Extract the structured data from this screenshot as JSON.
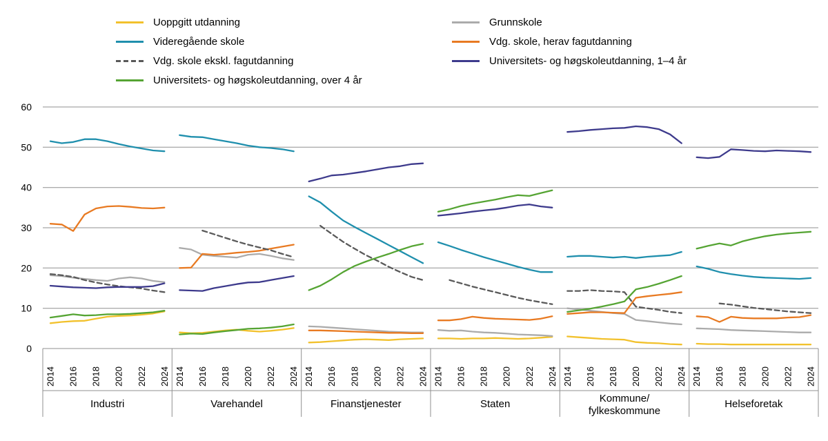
{
  "chart_data": {
    "type": "line",
    "years": [
      2014,
      2015,
      2016,
      2017,
      2018,
      2019,
      2020,
      2021,
      2022,
      2023,
      2024
    ],
    "x_tick_years": [
      2014,
      2016,
      2018,
      2020,
      2022,
      2024
    ],
    "ylim": [
      0,
      60
    ],
    "yticks": [
      0,
      10,
      20,
      30,
      40,
      50,
      60
    ],
    "style": {
      "background": "#FFFFFF",
      "grid_color": "#8F8F8F",
      "text_color": "#000000"
    },
    "series_meta": [
      {
        "id": "uoppgitt",
        "label": "Uoppgitt utdanning",
        "color": "#F2C12C",
        "dashed": false,
        "legend_column": "left"
      },
      {
        "id": "grunnskole",
        "label": "Grunnskole",
        "color": "#ABABAB",
        "dashed": false,
        "legend_column": "right"
      },
      {
        "id": "videregaende",
        "label": "Videregående skole",
        "color": "#1F8FAD",
        "dashed": false,
        "legend_column": "left"
      },
      {
        "id": "fagutdanning",
        "label": "Vdg. skole, herav fagutdanning",
        "color": "#E87A22",
        "dashed": false,
        "legend_column": "right"
      },
      {
        "id": "ekskl_fag",
        "label": "Vdg. skole ekskl. fagutdanning",
        "color": "#595959",
        "dashed": true,
        "legend_column": "left"
      },
      {
        "id": "uni_1_4",
        "label": "Universitets- og høgskoleutdanning, 1–4 år",
        "color": "#3D3A8C",
        "dashed": false,
        "legend_column": "right"
      },
      {
        "id": "uni_over_4",
        "label": "Universitets- og høgskoleutdanning, over 4 år",
        "color": "#55A433",
        "dashed": false,
        "legend_column": "left"
      }
    ],
    "panels": [
      {
        "id": "industri",
        "name": "Industri",
        "label_lines": [
          "Industri"
        ],
        "series": {
          "uoppgitt": [
            6.3,
            6.6,
            6.8,
            6.9,
            7.4,
            7.9,
            8.1,
            8.2,
            8.4,
            8.7,
            9.2
          ],
          "grunnskole": [
            18.2,
            18.0,
            17.6,
            17.3,
            17.0,
            16.8,
            17.4,
            17.7,
            17.4,
            16.8,
            16.5
          ],
          "videregaende": [
            51.5,
            51.0,
            51.3,
            52.0,
            52.0,
            51.5,
            50.8,
            50.2,
            49.7,
            49.2,
            49.0
          ],
          "fagutdanning": [
            31.0,
            30.8,
            29.2,
            33.3,
            34.8,
            35.3,
            35.4,
            35.2,
            34.9,
            34.8,
            35.0
          ],
          "ekskl_fag": [
            18.5,
            18.2,
            17.8,
            17.0,
            16.4,
            15.9,
            15.5,
            15.2,
            14.9,
            14.4,
            14.0
          ],
          "uni_1_4": [
            15.6,
            15.4,
            15.2,
            15.1,
            15.0,
            15.2,
            15.3,
            15.3,
            15.3,
            15.5,
            16.2
          ],
          "uni_over_4": [
            7.7,
            8.1,
            8.5,
            8.2,
            8.3,
            8.5,
            8.5,
            8.6,
            8.8,
            9.0,
            9.4
          ]
        }
      },
      {
        "id": "varehandel",
        "name": "Varehandel",
        "label_lines": [
          "Varehandel"
        ],
        "series": {
          "uoppgitt": [
            4.0,
            3.8,
            3.9,
            4.2,
            4.5,
            4.7,
            4.4,
            4.2,
            4.4,
            4.7,
            5.1
          ],
          "grunnskole": [
            25.0,
            24.6,
            23.3,
            23.0,
            22.8,
            22.6,
            23.3,
            23.5,
            23.0,
            22.4,
            22.0
          ],
          "videregaende": [
            53.0,
            52.6,
            52.5,
            52.0,
            51.5,
            51.0,
            50.4,
            50.0,
            49.8,
            49.5,
            49.0
          ],
          "fagutdanning": [
            20.0,
            20.1,
            23.5,
            23.3,
            23.5,
            23.8,
            24.0,
            24.3,
            24.8,
            25.3,
            25.8
          ],
          "ekskl_fag": [
            null,
            null,
            29.3,
            28.4,
            27.5,
            26.6,
            25.8,
            25.1,
            24.4,
            23.5,
            22.7
          ],
          "uni_1_4": [
            14.5,
            14.4,
            14.3,
            15.0,
            15.5,
            16.0,
            16.4,
            16.5,
            17.0,
            17.5,
            18.0
          ],
          "uni_over_4": [
            3.5,
            3.7,
            3.6,
            4.0,
            4.3,
            4.6,
            4.9,
            5.0,
            5.2,
            5.5,
            6.0
          ]
        }
      },
      {
        "id": "finanstjenester",
        "name": "Finanstjenester",
        "label_lines": [
          "Finanstjenester"
        ],
        "series": {
          "uoppgitt": [
            1.5,
            1.6,
            1.8,
            2.0,
            2.2,
            2.3,
            2.2,
            2.1,
            2.3,
            2.4,
            2.5
          ],
          "grunnskole": [
            5.5,
            5.4,
            5.2,
            5.0,
            4.8,
            4.6,
            4.4,
            4.2,
            4.1,
            4.0,
            4.0
          ],
          "videregaende": [
            37.8,
            36.3,
            34.0,
            31.8,
            30.2,
            28.7,
            27.2,
            25.7,
            24.2,
            22.7,
            21.2
          ],
          "fagutdanning": [
            4.5,
            4.5,
            4.4,
            4.3,
            4.2,
            4.1,
            4.0,
            3.9,
            3.9,
            3.8,
            3.8
          ],
          "ekskl_fag": [
            null,
            30.5,
            28.5,
            26.5,
            24.8,
            23.2,
            21.8,
            20.3,
            19.0,
            17.8,
            17.0
          ],
          "uni_1_4": [
            41.5,
            42.2,
            43.0,
            43.2,
            43.6,
            44.0,
            44.5,
            45.0,
            45.3,
            45.8,
            46.0
          ],
          "uni_over_4": [
            14.5,
            15.6,
            17.2,
            19.0,
            20.5,
            21.6,
            22.6,
            23.5,
            24.5,
            25.4,
            26.0
          ]
        }
      },
      {
        "id": "staten",
        "name": "Staten",
        "label_lines": [
          "Staten"
        ],
        "series": {
          "uoppgitt": [
            2.5,
            2.5,
            2.4,
            2.5,
            2.5,
            2.6,
            2.5,
            2.4,
            2.5,
            2.7,
            2.9
          ],
          "grunnskole": [
            4.6,
            4.4,
            4.5,
            4.2,
            4.0,
            3.9,
            3.7,
            3.5,
            3.4,
            3.3,
            3.1
          ],
          "videregaende": [
            26.4,
            25.5,
            24.5,
            23.6,
            22.7,
            21.9,
            21.1,
            20.3,
            19.6,
            19.0,
            19.0
          ],
          "fagutdanning": [
            7.0,
            7.0,
            7.3,
            7.9,
            7.6,
            7.4,
            7.3,
            7.2,
            7.1,
            7.4,
            8.0
          ],
          "ekskl_fag": [
            null,
            17.0,
            16.2,
            15.4,
            14.7,
            14.0,
            13.3,
            12.6,
            12.0,
            11.5,
            11.0
          ],
          "uni_1_4": [
            33.0,
            33.3,
            33.6,
            34.0,
            34.3,
            34.6,
            35.0,
            35.5,
            35.8,
            35.3,
            35.0
          ],
          "uni_over_4": [
            34.0,
            34.6,
            35.4,
            36.0,
            36.5,
            37.0,
            37.6,
            38.1,
            37.9,
            38.6,
            39.3
          ]
        }
      },
      {
        "id": "kommune",
        "name": "Kommune/fylkeskommune",
        "label_lines": [
          "Kommune/",
          "fylkeskommune"
        ],
        "series": {
          "uoppgitt": [
            3.0,
            2.8,
            2.6,
            2.4,
            2.3,
            2.2,
            1.6,
            1.4,
            1.3,
            1.1,
            1.0
          ],
          "grunnskole": [
            10.0,
            9.7,
            9.4,
            9.1,
            8.8,
            8.6,
            7.1,
            6.8,
            6.5,
            6.2,
            6.0
          ],
          "videregaende": [
            22.8,
            23.0,
            23.0,
            22.8,
            22.6,
            22.8,
            22.5,
            22.8,
            23.0,
            23.2,
            24.0
          ],
          "fagutdanning": [
            8.6,
            8.8,
            9.0,
            9.0,
            8.9,
            8.8,
            12.6,
            13.0,
            13.3,
            13.6,
            14.0
          ],
          "ekskl_fag": [
            14.3,
            14.3,
            14.5,
            14.3,
            14.2,
            14.0,
            10.4,
            10.0,
            9.6,
            9.1,
            8.8
          ],
          "uni_1_4": [
            53.8,
            54.0,
            54.3,
            54.5,
            54.7,
            54.8,
            55.2,
            55.0,
            54.5,
            53.2,
            51.0
          ],
          "uni_over_4": [
            9.1,
            9.5,
            9.9,
            10.4,
            11.0,
            11.7,
            14.7,
            15.3,
            16.1,
            17.0,
            18.0
          ]
        }
      },
      {
        "id": "helseforetak",
        "name": "Helseforetak",
        "label_lines": [
          "Helseforetak"
        ],
        "series": {
          "uoppgitt": [
            1.2,
            1.1,
            1.1,
            1.0,
            1.0,
            1.0,
            1.0,
            1.0,
            1.0,
            1.0,
            1.0
          ],
          "grunnskole": [
            5.0,
            4.9,
            4.8,
            4.6,
            4.5,
            4.4,
            4.3,
            4.2,
            4.1,
            4.0,
            4.0
          ],
          "videregaende": [
            20.4,
            19.8,
            19.0,
            18.5,
            18.1,
            17.8,
            17.6,
            17.5,
            17.4,
            17.3,
            17.5
          ],
          "fagutdanning": [
            8.0,
            7.8,
            6.6,
            7.9,
            7.6,
            7.5,
            7.5,
            7.5,
            7.7,
            7.8,
            8.3
          ],
          "ekskl_fag": [
            null,
            null,
            11.2,
            10.9,
            10.5,
            10.1,
            9.8,
            9.5,
            9.2,
            9.0,
            8.8
          ],
          "uni_1_4": [
            47.5,
            47.3,
            47.6,
            49.5,
            49.3,
            49.1,
            49.0,
            49.2,
            49.1,
            49.0,
            48.8
          ],
          "uni_over_4": [
            24.8,
            25.5,
            26.1,
            25.6,
            26.6,
            27.3,
            27.9,
            28.3,
            28.6,
            28.8,
            29.0
          ]
        }
      }
    ]
  }
}
